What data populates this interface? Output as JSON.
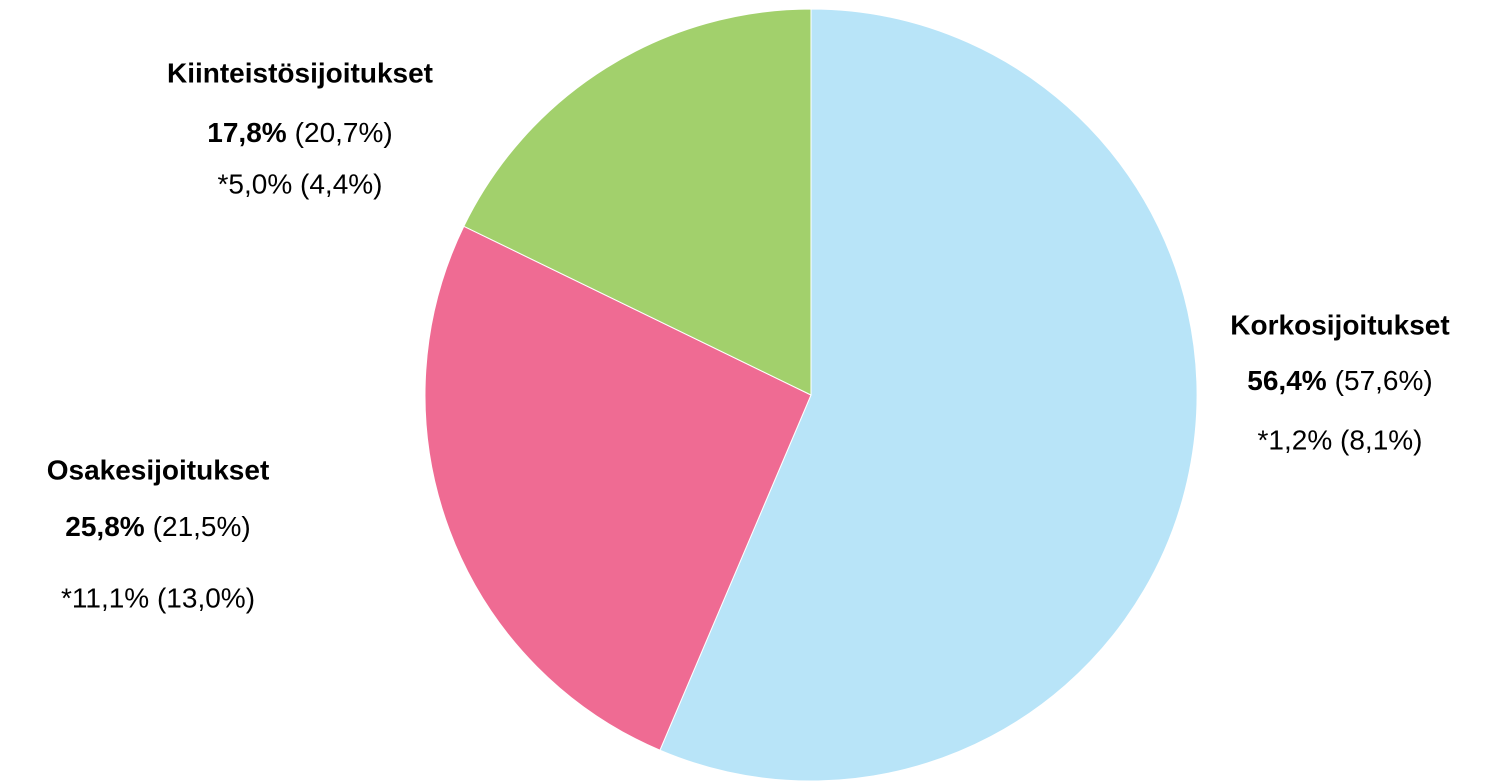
{
  "chart_data": {
    "type": "pie",
    "categories": [
      "Korkosijoitukset",
      "Osakesijoitukset",
      "Kiinteistösijoitukset"
    ],
    "values": [
      56.4,
      25.8,
      17.8
    ],
    "value_labels": [
      "56,4%",
      "25,8%",
      "17,8%"
    ],
    "previous_labels": [
      "(57,6%)",
      "(21,5%)",
      "(20,7%)"
    ],
    "return_labels": [
      "*1,2% (8,1%)",
      "*11,1% (13,0%)",
      "*5,0% (4,4%)"
    ],
    "colors": [
      "#b8e4f8",
      "#ef6b93",
      "#a2d06c"
    ]
  }
}
